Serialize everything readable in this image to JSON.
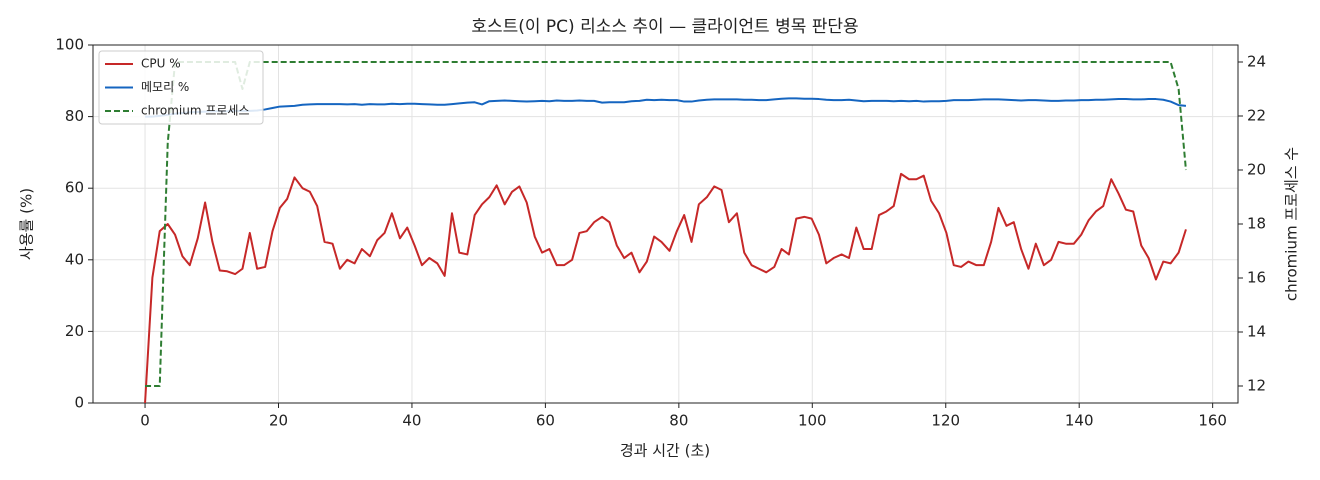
{
  "chart_data": {
    "type": "line",
    "title": "호스트(이 PC) 리소스 추이 — 클라이언트 병목 판단용",
    "xlabel": "경과 시간 (초)",
    "ylabel": "사용률 (%)",
    "y2label": "chromium 프로세스 수",
    "x": [
      0,
      1.1,
      2.2,
      3.4,
      4.5,
      5.6,
      6.7,
      7.9,
      9.0,
      10.1,
      11.2,
      12.3,
      13.5,
      14.6,
      15.7,
      16.8,
      18.0,
      19.1,
      20.2,
      21.3,
      22.4,
      23.6,
      24.7,
      25.8,
      26.9,
      28.1,
      29.2,
      30.3,
      31.4,
      32.5,
      33.7,
      34.8,
      35.9,
      37.0,
      38.2,
      39.3,
      40.4,
      41.5,
      42.6,
      43.8,
      44.9,
      46.0,
      47.1,
      48.3,
      49.4,
      50.5,
      51.6,
      52.7,
      53.9,
      55.0,
      56.1,
      57.2,
      58.4,
      59.5,
      60.6,
      61.7,
      62.8,
      64.0,
      65.1,
      66.2,
      67.3,
      68.5,
      69.6,
      70.7,
      71.8,
      72.9,
      74.1,
      75.2,
      76.3,
      77.4,
      78.6,
      79.7,
      80.8,
      81.9,
      83.0,
      84.2,
      85.3,
      86.4,
      87.5,
      88.7,
      89.8,
      90.9,
      92.0,
      93.1,
      94.3,
      95.4,
      96.5,
      97.6,
      98.8,
      99.9,
      101.0,
      102.1,
      103.2,
      104.4,
      105.5,
      106.6,
      107.7,
      108.9,
      110.0,
      111.1,
      112.2,
      113.3,
      114.5,
      115.6,
      116.7,
      117.8,
      119.0,
      120.1,
      121.2,
      122.3,
      123.4,
      124.6,
      125.7,
      126.8,
      127.9,
      129.1,
      130.2,
      131.3,
      132.4,
      133.5,
      134.7,
      135.8,
      136.9,
      138.0,
      139.2,
      140.3,
      141.4,
      142.5,
      143.6,
      144.8,
      145.9,
      147.0,
      148.1,
      149.3,
      150.4,
      151.5,
      152.6,
      153.7,
      154.9,
      156.0
    ],
    "series": [
      {
        "name": "CPU %",
        "color": "#c62828",
        "values": [
          0,
          35,
          48,
          50,
          47,
          41,
          38.5,
          46,
          56,
          45,
          37,
          36.8,
          36,
          37.5,
          47.5,
          37.5,
          38,
          48,
          54.5,
          57,
          63,
          60,
          59,
          55,
          45,
          44.5,
          37.5,
          40,
          39,
          43,
          41,
          45.5,
          47.5,
          53,
          46,
          49,
          44,
          38.5,
          40.5,
          39,
          35.5,
          53,
          42,
          41.5,
          52.5,
          55.5,
          57.5,
          60.8,
          55.5,
          59,
          60.5,
          56,
          46.5,
          42,
          43,
          38.5,
          38.5,
          40,
          47.5,
          48,
          50.5,
          52,
          50.5,
          44,
          40.5,
          42,
          36.5,
          39.5,
          46.5,
          45,
          42.5,
          48,
          52.5,
          45,
          55.5,
          57.5,
          60.5,
          59.5,
          50.5,
          53,
          42,
          38.5,
          37.5,
          36.5,
          38,
          43,
          41.5,
          51.5,
          52,
          51.5,
          47,
          39,
          40.5,
          41.5,
          40.5,
          49,
          43,
          43,
          52.5,
          53.5,
          55,
          64,
          62.5,
          62.5,
          63.5,
          56.5,
          53,
          47.5,
          38.5,
          38,
          39.5,
          38.5,
          38.5,
          45,
          54.5,
          49.5,
          50.5,
          43,
          37.5,
          44.5,
          38.5,
          40,
          45,
          44.5,
          44.5,
          47,
          51,
          53.5,
          55,
          62.5,
          58.5,
          54,
          53.5,
          44,
          40.5,
          34.5,
          39.5,
          39,
          42,
          48.5
        ]
      },
      {
        "name": "메모리 %",
        "color": "#1565c0",
        "values": [
          80,
          80,
          80.2,
          80.5,
          80.8,
          81,
          81.2,
          81.3,
          81.4,
          81.5,
          81.5,
          81.5,
          81.6,
          81.6,
          81.6,
          81.7,
          82,
          82.4,
          82.8,
          82.9,
          83,
          83.3,
          83.4,
          83.5,
          83.5,
          83.5,
          83.5,
          83.4,
          83.5,
          83.3,
          83.5,
          83.4,
          83.4,
          83.6,
          83.5,
          83.6,
          83.6,
          83.5,
          83.4,
          83.3,
          83.3,
          83.5,
          83.7,
          83.9,
          84,
          83.4,
          84.3,
          84.4,
          84.5,
          84.4,
          84.3,
          84.2,
          84.3,
          84.4,
          84.3,
          84.5,
          84.4,
          84.4,
          84.5,
          84.4,
          84.4,
          83.9,
          84,
          84,
          84,
          84.3,
          84.4,
          84.7,
          84.6,
          84.7,
          84.6,
          84.6,
          84.2,
          84.2,
          84.5,
          84.7,
          84.8,
          84.8,
          84.8,
          84.8,
          84.7,
          84.7,
          84.6,
          84.6,
          84.8,
          85,
          85.1,
          85.1,
          85,
          85,
          84.9,
          84.7,
          84.6,
          84.6,
          84.7,
          84.5,
          84.3,
          84.4,
          84.4,
          84.4,
          84.3,
          84.4,
          84.3,
          84.4,
          84.2,
          84.3,
          84.3,
          84.4,
          84.6,
          84.6,
          84.6,
          84.7,
          84.8,
          84.8,
          84.8,
          84.7,
          84.6,
          84.5,
          84.6,
          84.6,
          84.5,
          84.4,
          84.4,
          84.5,
          84.5,
          84.6,
          84.6,
          84.7,
          84.7,
          84.8,
          84.9,
          84.9,
          84.8,
          84.8,
          84.9,
          84.9,
          84.7,
          84.2,
          83.2,
          83
        ]
      },
      {
        "name": "chromium 프로세스",
        "color": "#2e7d32",
        "linestyle": "dashed",
        "axis": "y2",
        "values": [
          12,
          12,
          12,
          21,
          24,
          24,
          24,
          24,
          24,
          24,
          24,
          24,
          24,
          23,
          24,
          24,
          24,
          24,
          24,
          24,
          24,
          24,
          24,
          24,
          24,
          24,
          24,
          24,
          24,
          24,
          24,
          24,
          24,
          24,
          24,
          24,
          24,
          24,
          24,
          24,
          24,
          24,
          24,
          24,
          24,
          24,
          24,
          24,
          24,
          24,
          24,
          24,
          24,
          24,
          24,
          24,
          24,
          24,
          24,
          24,
          24,
          24,
          24,
          24,
          24,
          24,
          24,
          24,
          24,
          24,
          24,
          24,
          24,
          24,
          24,
          24,
          24,
          24,
          24,
          24,
          24,
          24,
          24,
          24,
          24,
          24,
          24,
          24,
          24,
          24,
          24,
          24,
          24,
          24,
          24,
          24,
          24,
          24,
          24,
          24,
          24,
          24,
          24,
          24,
          24,
          24,
          24,
          24,
          24,
          24,
          24,
          24,
          24,
          24,
          24,
          24,
          24,
          24,
          24,
          24,
          24,
          24,
          24,
          24,
          24,
          24,
          24,
          24,
          24,
          24,
          24,
          24,
          24,
          24,
          24,
          24,
          24,
          24,
          23,
          20
        ]
      }
    ],
    "xlim": [
      -7.8,
      163.8
    ],
    "xticks": [
      0,
      20,
      40,
      60,
      80,
      100,
      120,
      140,
      160
    ],
    "ylim": [
      0,
      100
    ],
    "yticks": [
      0,
      20,
      40,
      60,
      80,
      100
    ],
    "y2lim": [
      11.37,
      24.63
    ],
    "y2ticks": [
      12,
      14,
      16,
      18,
      20,
      22,
      24
    ],
    "grid": true,
    "legend": "upper left"
  }
}
